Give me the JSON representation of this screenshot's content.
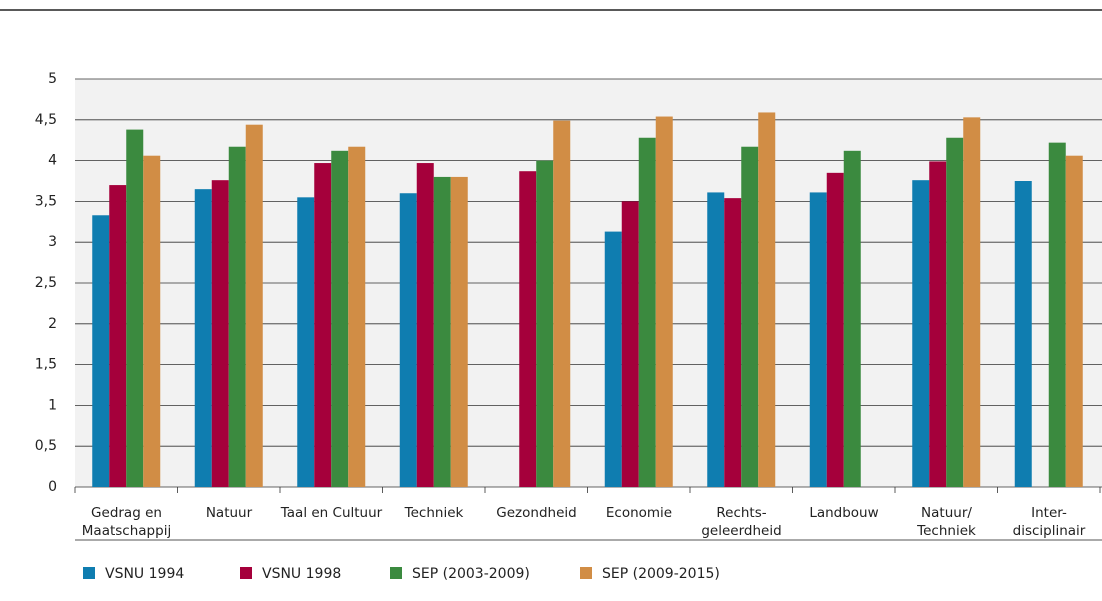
{
  "chart_data": {
    "type": "bar",
    "categories": [
      "Gedrag en\nMaatschappij",
      "Natuur",
      "Taal en Cultuur",
      "Techniek",
      "Gezondheid",
      "Economie",
      "Rechts-\ngeleerdheid",
      "Landbouw",
      "Natuur/\nTechniek",
      "Inter-\ndisciplinair"
    ],
    "series": [
      {
        "name": "VSNU 1994",
        "color": "#0f7db0",
        "values": [
          3.33,
          3.65,
          3.55,
          3.6,
          null,
          3.13,
          3.61,
          3.61,
          3.76,
          3.75
        ]
      },
      {
        "name": "VSNU 1998",
        "color": "#a5003b",
        "values": [
          3.7,
          3.76,
          3.97,
          3.97,
          3.87,
          3.5,
          3.54,
          3.85,
          3.99,
          null
        ]
      },
      {
        "name": "SEP (2003-2009)",
        "color": "#3b8a3f",
        "values": [
          4.38,
          4.17,
          4.12,
          3.8,
          4.0,
          4.28,
          4.17,
          4.12,
          4.28,
          4.22
        ]
      },
      {
        "name": "SEP (2009-2015)",
        "color": "#d18d45",
        "values": [
          4.06,
          4.44,
          4.17,
          3.8,
          4.49,
          4.54,
          4.59,
          null,
          4.53,
          4.06
        ]
      }
    ],
    "ylim": [
      0,
      5
    ],
    "yticks": [
      0,
      {
        "value": 0.5,
        "label": "0,5"
      },
      1,
      {
        "value": 1.5,
        "label": "1,5"
      },
      2,
      {
        "value": 2.5,
        "label": "2,5"
      },
      3,
      {
        "value": 3.5,
        "label": "3,5"
      },
      4,
      {
        "value": 4.5,
        "label": "4,5"
      },
      5
    ],
    "grid": true
  }
}
